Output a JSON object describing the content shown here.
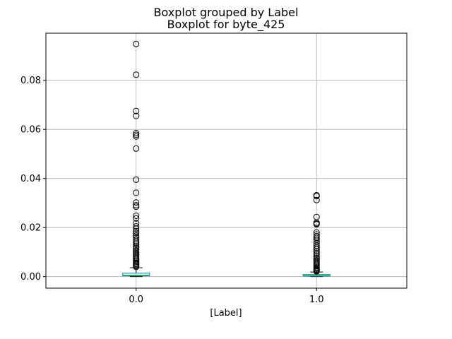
{
  "chart_data": {
    "type": "boxplot",
    "suptitle": "Boxplot grouped by Label",
    "title": "Boxplot for byte_425",
    "xlabel": "[Label]",
    "ylabel": "",
    "categories": [
      "0.0",
      "1.0"
    ],
    "ylim": [
      -0.0047,
      0.0992
    ],
    "yticks": [
      0.0,
      0.02,
      0.04,
      0.06,
      0.08
    ],
    "ytick_labels": [
      "0.00",
      "0.02",
      "0.04",
      "0.06",
      "0.08"
    ],
    "grid": true,
    "boxes": [
      {
        "category": "0.0",
        "whisker_low": 0.0,
        "q1": 0.0003,
        "median": 0.0006,
        "q3": 0.0014,
        "whisker_high": 0.0036,
        "outliers": [
          0.0948,
          0.0823,
          0.0675,
          0.0655,
          0.0585,
          0.0578,
          0.0571,
          0.0522,
          0.0395,
          0.0342,
          0.0302,
          0.0291,
          0.0285,
          0.0248,
          0.0237,
          0.0218,
          0.0205,
          0.0195,
          0.0185,
          0.0178,
          0.0168,
          0.016,
          0.0152,
          0.0145,
          0.0138,
          0.0131,
          0.0124,
          0.0118,
          0.0112,
          0.0106,
          0.01,
          0.0094,
          0.0088,
          0.0082,
          0.0076,
          0.0071,
          0.0066,
          0.0061,
          0.0056,
          0.0052,
          0.0048,
          0.0044,
          0.004
        ]
      },
      {
        "category": "1.0",
        "whisker_low": 0.0,
        "q1": 0.0002,
        "median": 0.0004,
        "q3": 0.0009,
        "whisker_high": 0.0019,
        "outliers": [
          0.0332,
          0.0328,
          0.0312,
          0.0243,
          0.022,
          0.0216,
          0.0213,
          0.018,
          0.0172,
          0.0165,
          0.0158,
          0.015,
          0.0142,
          0.0134,
          0.0126,
          0.0118,
          0.0111,
          0.0104,
          0.0097,
          0.009,
          0.0083,
          0.0077,
          0.0071,
          0.0065,
          0.0059,
          0.0053,
          0.0048,
          0.0043,
          0.0038,
          0.0034,
          0.003,
          0.0027,
          0.0024,
          0.0021
        ]
      }
    ],
    "colors": {
      "box": "#1f9bb3",
      "median": "#2ca02c",
      "whisker": "#000000",
      "grid": "#b0b0b0",
      "axes": "#000000"
    }
  }
}
